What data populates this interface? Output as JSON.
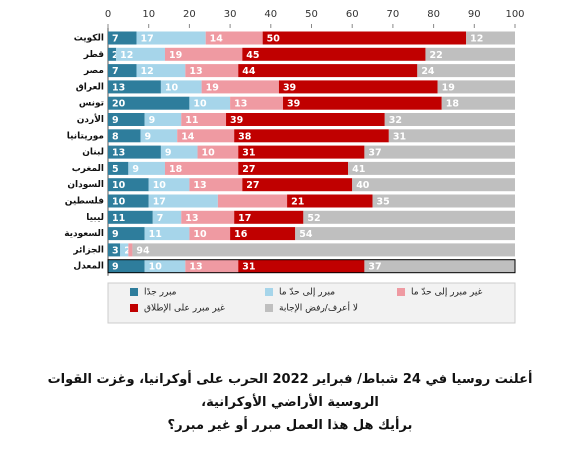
{
  "chart_data": {
    "type": "stacked-bar-horizontal",
    "categories": [
      "الكويت",
      "قطر",
      "مصر",
      "العراق",
      "تونس",
      "الأردن",
      "موريتانيا",
      "لبنان",
      "المغرب",
      "السودان",
      "فلسطين",
      "ليبيا",
      "السعودية",
      "الجزائر",
      "المعدل"
    ],
    "series": [
      {
        "name": "مبرر جدًا",
        "color": "#2e7d9c",
        "values": [
          7,
          2,
          7,
          13,
          20,
          9,
          8,
          13,
          5,
          10,
          10,
          11,
          9,
          3,
          9
        ]
      },
      {
        "name": "مبرر إلى حدّ ما",
        "color": "#a6d5ea",
        "values": [
          17,
          12,
          12,
          10,
          10,
          9,
          9,
          9,
          9,
          10,
          17,
          7,
          11,
          2,
          10
        ]
      },
      {
        "name": "غير مبرر إلى حدّ ما",
        "color": "#ef9aa2",
        "values": [
          14,
          19,
          13,
          19,
          13,
          11,
          14,
          10,
          18,
          13,
          17,
          13,
          10,
          1,
          13
        ],
        "value_labels": [
          "14",
          "19",
          "13",
          "19",
          "13",
          "11",
          "14",
          "10",
          "18",
          "13",
          null,
          "13",
          "10",
          "1",
          "13"
        ]
      },
      {
        "name": "غير مبرر على الإطلاق",
        "color": "#c00000",
        "values": [
          50,
          45,
          44,
          39,
          39,
          39,
          38,
          31,
          27,
          27,
          21,
          17,
          16,
          0,
          31
        ]
      },
      {
        "name": "لا أعرف/رفض الإجابة",
        "color": "#bfbfbf",
        "values": [
          12,
          22,
          24,
          19,
          18,
          32,
          31,
          37,
          41,
          40,
          35,
          52,
          54,
          94,
          37
        ]
      }
    ],
    "xlim": [
      0,
      100
    ],
    "xticks": [
      0,
      10,
      20,
      30,
      40,
      50,
      60,
      70,
      80,
      90,
      100
    ],
    "highlight_category": "المعدل",
    "question": [
      "أعلنت روسيا في 24 شباط/ فبراير 2022 الحرب على أوكرانيا، وغزت القوات الروسية الأراضي الأوكرانية،",
      "برأيك هل هذا العمل مبرر أو غير مبرر؟"
    ]
  }
}
